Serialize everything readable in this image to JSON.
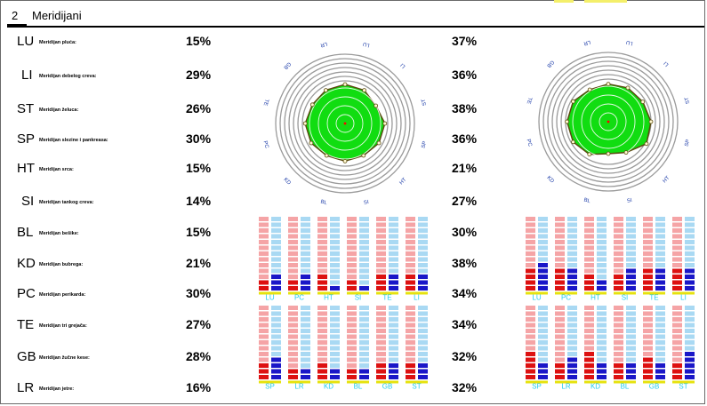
{
  "header": {
    "number": "2",
    "title": "Meridijani"
  },
  "colors": {
    "bar_red": "#dd1111",
    "bar_pink": "#f5a4a6",
    "bar_blue": "#1a17c8",
    "bar_lightblue": "#a9d9f3",
    "base_yellow": "#e6e20e",
    "label_cyan": "#22ccee",
    "radar_fill": "#11dd11",
    "radar_outline": "#5a4a10",
    "ring_gray": "#9a9a9a"
  },
  "meridians": [
    {
      "code": "LU",
      "name": "Meridijan pluća:",
      "value1": "15%",
      "value2": "37%"
    },
    {
      "code": "LI",
      "name": "Meridijan debelog creva:",
      "value1": "29%",
      "value2": "36%"
    },
    {
      "code": "ST",
      "name": "Meridijan želuca:",
      "value1": "26%",
      "value2": "38%"
    },
    {
      "code": "SP",
      "name": "Meridijan slezine i pankreasa:",
      "value1": "30%",
      "value2": "36%"
    },
    {
      "code": "HT",
      "name": "Meridijan srca:",
      "value1": "15%",
      "value2": "21%"
    },
    {
      "code": "SI",
      "name": "Meridijan tankog creva:",
      "value1": "14%",
      "value2": "27%"
    },
    {
      "code": "BL",
      "name": "Meridijan bešike:",
      "value1": "15%",
      "value2": "30%"
    },
    {
      "code": "KD",
      "name": "Meridijan bubrega:",
      "value1": "21%",
      "value2": "38%"
    },
    {
      "code": "PC",
      "name": "Meridijan perikarda:",
      "value1": "30%",
      "value2": "34%"
    },
    {
      "code": "TE",
      "name": "Meridijan tri grejača:",
      "value1": "27%",
      "value2": "34%"
    },
    {
      "code": "GB",
      "name": "Meridijan žučne kese:",
      "value1": "28%",
      "value2": "32%"
    },
    {
      "code": "LR",
      "name": "Meridijan jetre:",
      "value1": "16%",
      "value2": "32%"
    }
  ],
  "chart_data": [
    {
      "type": "radar",
      "axes": [
        "LR",
        "LU",
        "LI",
        "ST",
        "SP",
        "HT",
        "SI",
        "BL",
        "KD",
        "PC",
        "TE",
        "GB"
      ],
      "axis_labels": [
        "LR",
        "LU",
        "LI",
        "ST",
        "SP",
        "HT",
        "SI",
        "BL",
        "KD",
        "PC",
        "TE",
        "GB"
      ],
      "values": [
        0.55,
        0.54,
        0.5,
        0.56,
        0.55,
        0.52,
        0.53,
        0.52,
        0.55,
        0.56,
        0.53,
        0.54
      ]
    },
    {
      "type": "radar",
      "axes": [
        "LR",
        "LU",
        "LI",
        "ST",
        "SP",
        "HT",
        "SI",
        "BL",
        "KD",
        "PC",
        "TE",
        "GB"
      ],
      "axis_labels": [
        "LR",
        "LU",
        "LI",
        "ST",
        "SP",
        "HT",
        "SI",
        "BL",
        "KD",
        "PC",
        "TE",
        "GB"
      ],
      "values": [
        0.53,
        0.55,
        0.56,
        0.6,
        0.62,
        0.5,
        0.45,
        0.53,
        0.57,
        0.58,
        0.57,
        0.52
      ]
    },
    {
      "type": "bar",
      "total_segments": 13,
      "groups": [
        {
          "label": "LU",
          "left": 2,
          "right": 3
        },
        {
          "label": "PC",
          "left": 2,
          "right": 3
        },
        {
          "label": "HT",
          "left": 3,
          "right": 1
        },
        {
          "label": "SI",
          "left": 2,
          "right": 1
        },
        {
          "label": "TE",
          "left": 3,
          "right": 3
        },
        {
          "label": "LI",
          "left": 3,
          "right": 3
        },
        {
          "label": "SP",
          "left": 3,
          "right": 4
        },
        {
          "label": "LR",
          "left": 2,
          "right": 2
        },
        {
          "label": "KD",
          "left": 3,
          "right": 2
        },
        {
          "label": "BL",
          "left": 2,
          "right": 2
        },
        {
          "label": "GB",
          "left": 3,
          "right": 3
        },
        {
          "label": "ST",
          "left": 3,
          "right": 3
        }
      ]
    },
    {
      "type": "bar",
      "total_segments": 13,
      "groups": [
        {
          "label": "LU",
          "left": 4,
          "right": 5
        },
        {
          "label": "PC",
          "left": 4,
          "right": 4
        },
        {
          "label": "HT",
          "left": 3,
          "right": 2
        },
        {
          "label": "SI",
          "left": 3,
          "right": 4
        },
        {
          "label": "TE",
          "left": 4,
          "right": 4
        },
        {
          "label": "LI",
          "left": 4,
          "right": 4
        },
        {
          "label": "SP",
          "left": 5,
          "right": 3
        },
        {
          "label": "LR",
          "left": 3,
          "right": 4
        },
        {
          "label": "KD",
          "left": 5,
          "right": 3
        },
        {
          "label": "BL",
          "left": 3,
          "right": 3
        },
        {
          "label": "GB",
          "left": 4,
          "right": 3
        },
        {
          "label": "ST",
          "left": 3,
          "right": 5
        }
      ]
    }
  ]
}
